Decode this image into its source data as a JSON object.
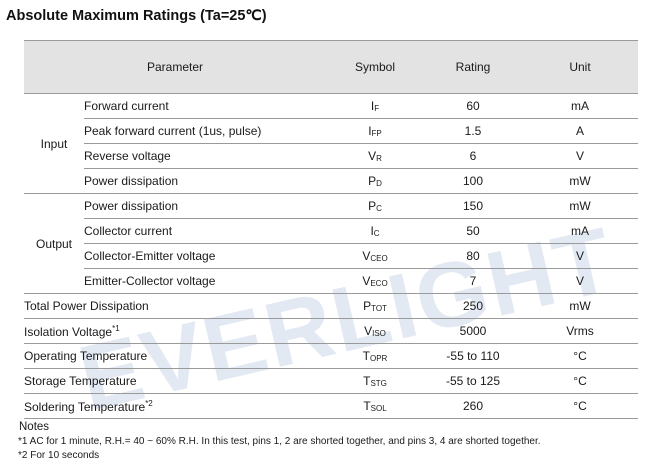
{
  "title": "Absolute Maximum Ratings (Ta=25℃)",
  "watermark": "EVERLIGHT",
  "headers": {
    "parameter": "Parameter",
    "symbol": "Symbol",
    "rating": "Rating",
    "unit": "Unit"
  },
  "groups": {
    "input": "Input",
    "output": "Output"
  },
  "rows": [
    {
      "param": "Forward current",
      "sym": "I",
      "sub": "F",
      "rating": "60",
      "unit": "mA"
    },
    {
      "param": "Peak forward current (1us, pulse)",
      "sym": "I",
      "sub": "FP",
      "rating": "1.5",
      "unit": "A"
    },
    {
      "param": "Reverse voltage",
      "sym": "V",
      "sub": "R",
      "rating": "6",
      "unit": "V"
    },
    {
      "param": "Power dissipation",
      "sym": "P",
      "sub": "D",
      "rating": "100",
      "unit": "mW"
    },
    {
      "param": "Power dissipation",
      "sym": "P",
      "sub": "C",
      "rating": "150",
      "unit": "mW"
    },
    {
      "param": "Collector current",
      "sym": "I",
      "sub": "C",
      "rating": "50",
      "unit": "mA"
    },
    {
      "param": "Collector-Emitter voltage",
      "sym": "V",
      "sub": "CEO",
      "rating": "80",
      "unit": "V"
    },
    {
      "param": "Emitter-Collector voltage",
      "sym": "V",
      "sub": "ECO",
      "rating": "7",
      "unit": "V"
    },
    {
      "param": "Total Power Dissipation",
      "sym": "P",
      "sub": "TOT",
      "rating": "250",
      "unit": "mW"
    },
    {
      "param": "Isolation Voltage",
      "note": "*1",
      "sym": "V",
      "sub": "ISO",
      "rating": "5000",
      "unit": "Vrms"
    },
    {
      "param": "Operating Temperature",
      "sym": "T",
      "sub": "OPR",
      "rating": "-55 to 110",
      "unit": "°C"
    },
    {
      "param": "Storage Temperature",
      "sym": "T",
      "sub": "STG",
      "rating": "-55 to 125",
      "unit": "°C"
    },
    {
      "param": "Soldering Temperature",
      "note": "*2",
      "sym": "T",
      "sub": "SOL",
      "rating": "260",
      "unit": "°C"
    }
  ],
  "notes": {
    "heading": "Notes",
    "n1": "*1 AC for 1 minute, R.H.= 40 ~ 60% R.H. In this test, pins 1, 2 are shorted together, and pins 3, 4 are shorted together.",
    "n2": "*2 For 10 seconds"
  },
  "colors": {
    "header_bg": "#e3e3e3",
    "rule": "#9a9a9a",
    "watermark": "#dde6f2"
  }
}
